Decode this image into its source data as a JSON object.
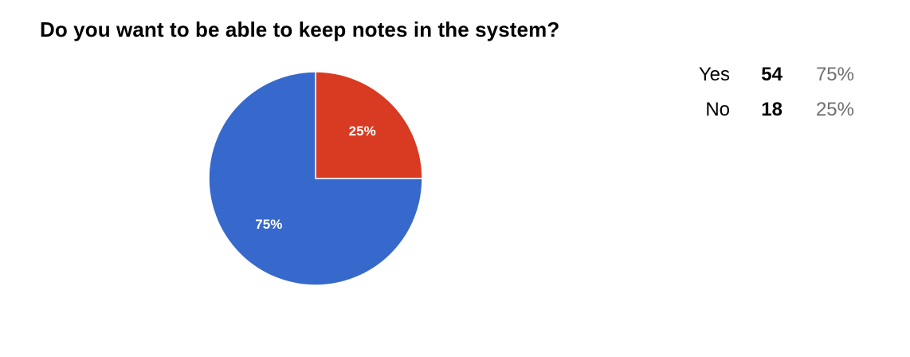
{
  "colors": {
    "yes": "#3769cc",
    "no": "#d83a22"
  },
  "chart_data": {
    "type": "pie",
    "title": "Do you want to be able to keep notes in the system?",
    "series": [
      {
        "name": "Yes",
        "count": 54,
        "percent": 75,
        "percent_label": "75%"
      },
      {
        "name": "No",
        "count": 18,
        "percent": 25,
        "percent_label": "25%"
      }
    ],
    "start": "12 o'clock",
    "direction": "clockwise",
    "slice_order": [
      "No",
      "Yes"
    ]
  },
  "summary": {
    "rows": [
      {
        "label": "Yes",
        "count": "54",
        "percent": "75%"
      },
      {
        "label": "No",
        "count": "18",
        "percent": "25%"
      }
    ]
  }
}
